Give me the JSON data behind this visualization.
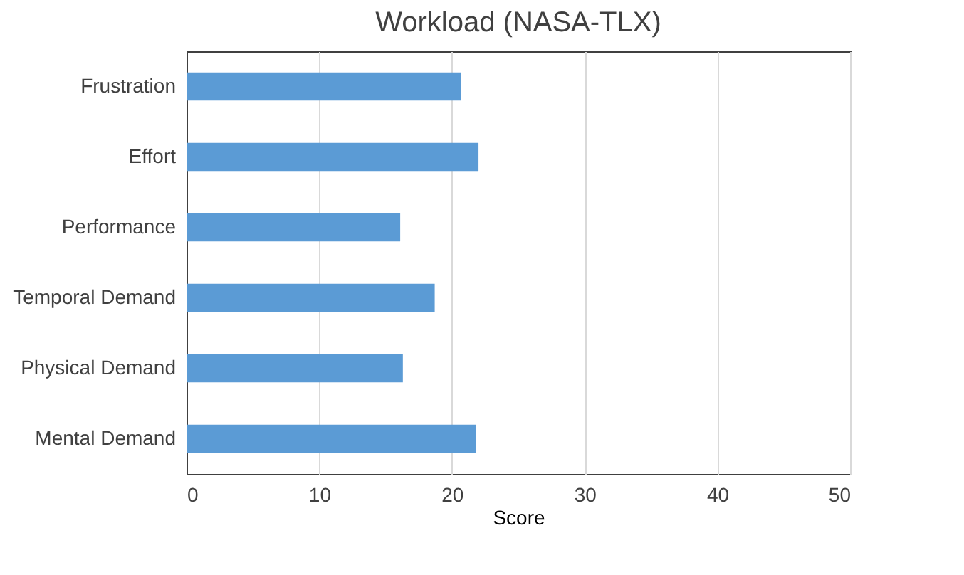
{
  "chart_data": {
    "type": "bar",
    "orientation": "horizontal",
    "title": "Workload (NASA-TLX)",
    "xlabel": "Score",
    "categories": [
      "Frustration",
      "Effort",
      "Performance",
      "Temporal Demand",
      "Physical Demand",
      "Mental Demand"
    ],
    "values": [
      20.7,
      22.0,
      16.1,
      18.7,
      16.3,
      21.8
    ],
    "color": "#5b9bd5",
    "xlim": [
      0,
      50
    ],
    "xticks": [
      0,
      10,
      20,
      30,
      40,
      50
    ],
    "grid": "x"
  }
}
